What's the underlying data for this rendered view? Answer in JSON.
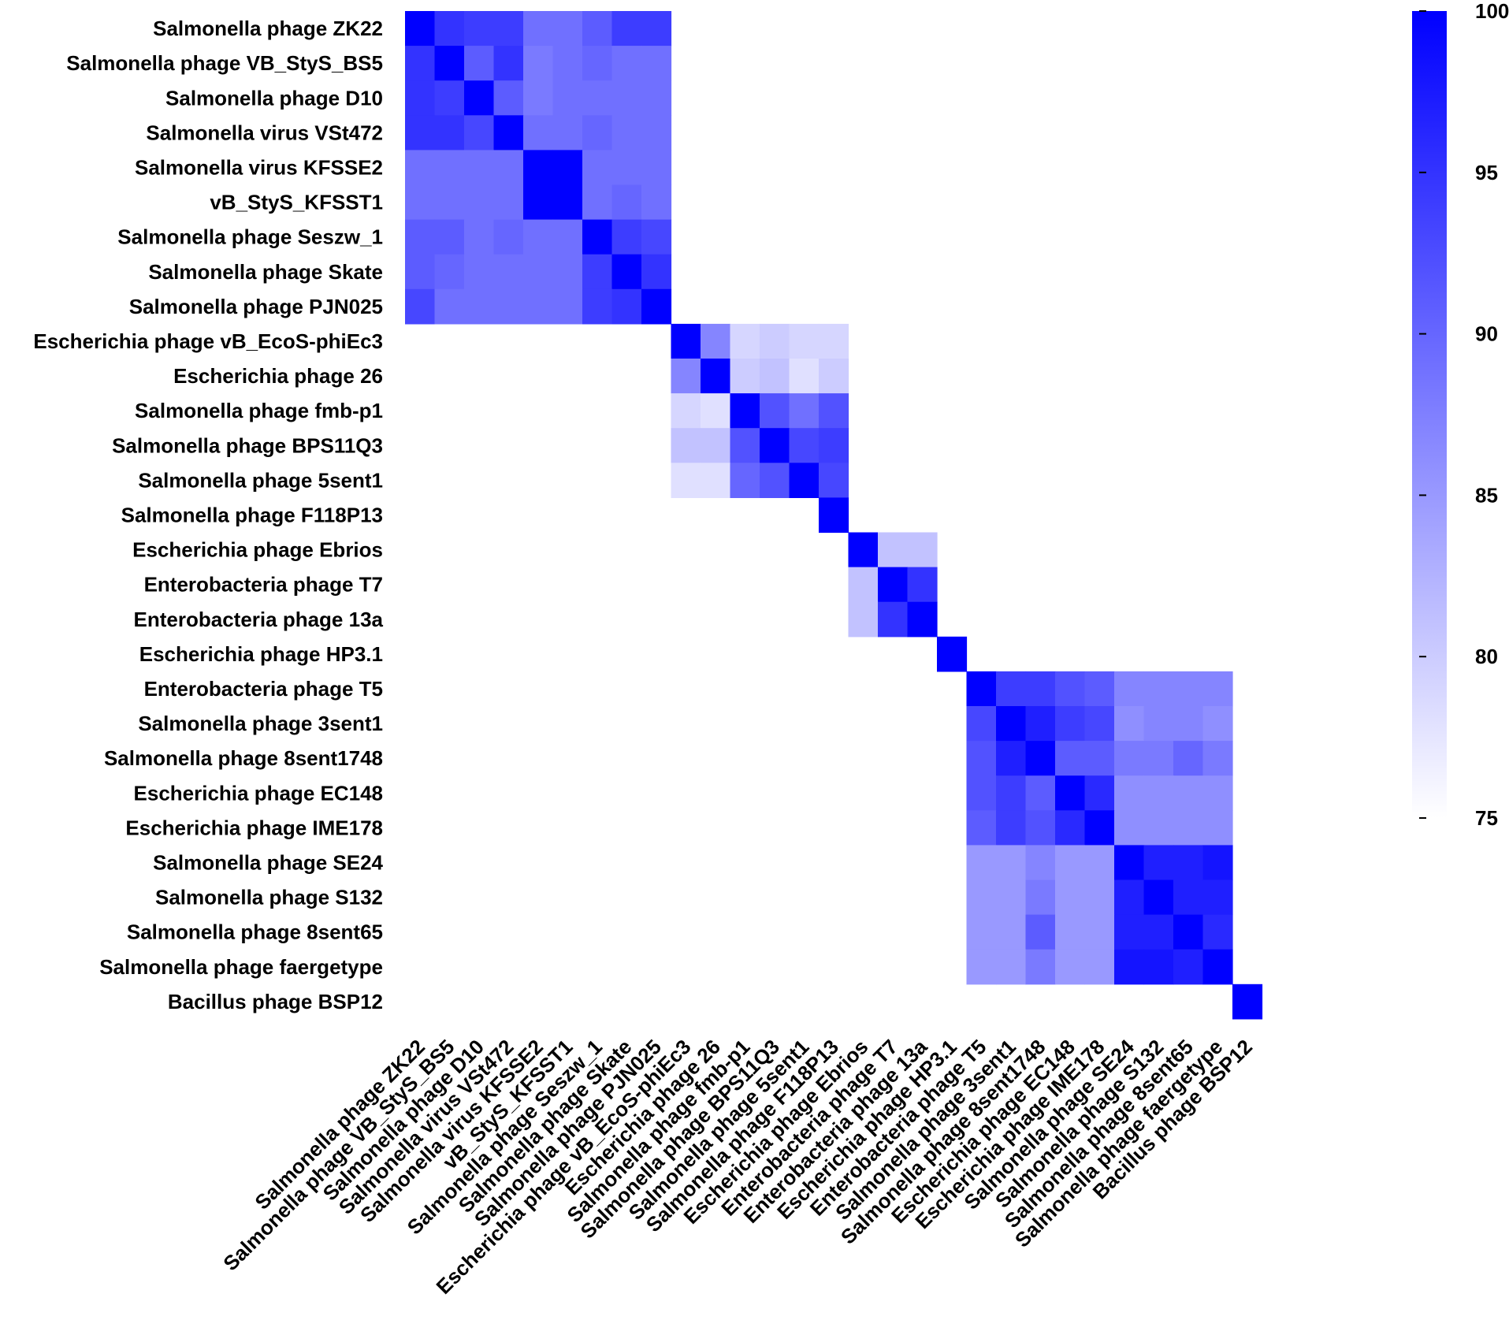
{
  "chart_data": {
    "type": "heatmap",
    "labels": [
      "Salmonella phage ZK22",
      "Salmonella phage VB_StyS_BS5",
      "Salmonella phage D10",
      "Salmonella virus VSt472",
      "Salmonella virus KFSSE2",
      "vB_StyS_KFSST1",
      "Salmonella phage Seszw_1",
      "Salmonella phage Skate",
      "Salmonella phage PJN025",
      "Escherichia phage vB_EcoS-phiEc3",
      "Escherichia phage 26",
      "Salmonella phage fmb-p1",
      "Salmonella phage BPS11Q3",
      "Salmonella phage 5sent1",
      "Salmonella phage F118P13",
      "Escherichia phage Ebrios",
      "Enterobacteria phage T7",
      "Enterobacteria phage 13a",
      "Escherichia phage HP3.1",
      "Enterobacteria phage T5",
      "Salmonella phage 3sent1",
      "Salmonella phage 8sent1748",
      "Escherichia phage EC148",
      "Escherichia phage IME178",
      "Salmonella phage SE24",
      "Salmonella phage S132",
      "Salmonella phage 8sent65",
      "Salmonella phage faergetype",
      "Bacillus phage BSP12"
    ],
    "colorbar": {
      "min": 75,
      "max": 100,
      "ticks": [
        100,
        95,
        90,
        85,
        80,
        75
      ],
      "low_color": "#ffffff",
      "high_color": "#0000ff"
    },
    "blocks": [
      {
        "start": 0,
        "values": [
          [
            100,
            95,
            94,
            94,
            89,
            89,
            91,
            94,
            94
          ],
          [
            95,
            100,
            91,
            95,
            88,
            89,
            90,
            89,
            89
          ],
          [
            95,
            94,
            100,
            91,
            88,
            89,
            89,
            89,
            89
          ],
          [
            95,
            95,
            93,
            100,
            89,
            89,
            90,
            89,
            89
          ],
          [
            89,
            89,
            89,
            89,
            100,
            100,
            89,
            89,
            89
          ],
          [
            89,
            89,
            89,
            89,
            100,
            100,
            89,
            90,
            89
          ],
          [
            91,
            91,
            89,
            90,
            89,
            89,
            100,
            94,
            93
          ],
          [
            91,
            90,
            89,
            89,
            89,
            89,
            94,
            100,
            95
          ],
          [
            93,
            89,
            89,
            89,
            89,
            89,
            94,
            95,
            100
          ]
        ]
      },
      {
        "start": 9,
        "values": [
          [
            100,
            87,
            79,
            80,
            79,
            79
          ],
          [
            87,
            100,
            80,
            81,
            78,
            80
          ],
          [
            79,
            78,
            100,
            92,
            89,
            92
          ],
          [
            81,
            81,
            92,
            100,
            93,
            94
          ],
          [
            78,
            78,
            90,
            92,
            100,
            93
          ],
          [
            null,
            null,
            null,
            null,
            null,
            100
          ]
        ]
      },
      {
        "start": 15,
        "values": [
          [
            100,
            81,
            81
          ],
          [
            81,
            100,
            95
          ],
          [
            81,
            95,
            100
          ]
        ]
      },
      {
        "start": 18,
        "values": [
          [
            100
          ]
        ]
      },
      {
        "start": 19,
        "values": [
          [
            100,
            94,
            94,
            92,
            91,
            87,
            87,
            87,
            87
          ],
          [
            93,
            100,
            97,
            94,
            93,
            86,
            87,
            87,
            86
          ],
          [
            92,
            97,
            100,
            91,
            91,
            88,
            88,
            90,
            88
          ],
          [
            92,
            94,
            91,
            100,
            96,
            86,
            86,
            86,
            86
          ],
          [
            91,
            94,
            92,
            96,
            100,
            86,
            86,
            86,
            86
          ],
          [
            85,
            85,
            87,
            85,
            85,
            100,
            97,
            97,
            98
          ],
          [
            85,
            85,
            88,
            85,
            85,
            97,
            100,
            97,
            97
          ],
          [
            85,
            85,
            91,
            85,
            85,
            97,
            97,
            100,
            96
          ],
          [
            85,
            85,
            88,
            85,
            85,
            98,
            98,
            97,
            100
          ]
        ]
      },
      {
        "start": 28,
        "values": [
          [
            100
          ]
        ]
      }
    ]
  }
}
